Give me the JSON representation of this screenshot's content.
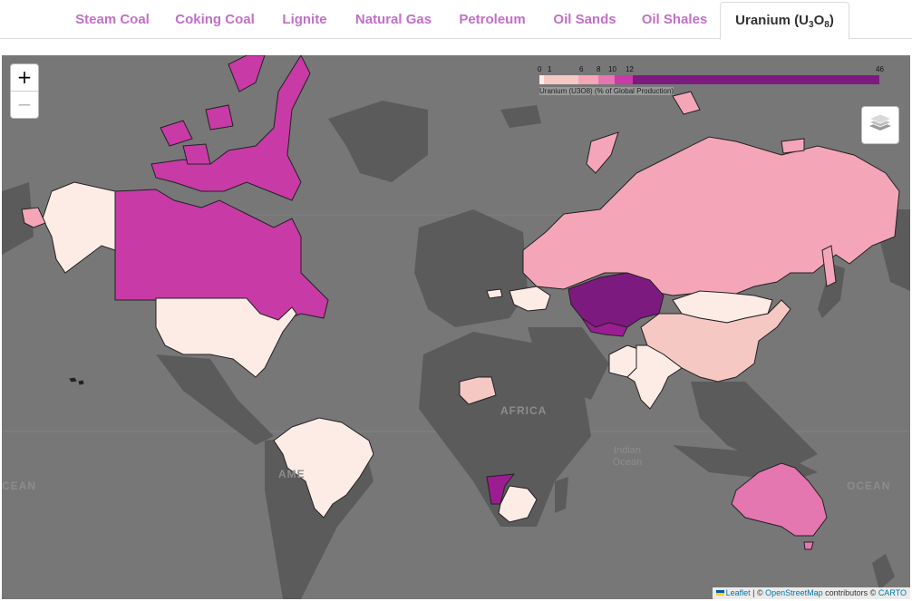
{
  "tabs": [
    {
      "label": "Steam Coal"
    },
    {
      "label": "Coking Coal"
    },
    {
      "label": "Lignite"
    },
    {
      "label": "Natural Gas"
    },
    {
      "label": "Petroleum"
    },
    {
      "label": "Oil Sands"
    },
    {
      "label": "Oil Shales"
    },
    {
      "label_main": "Uranium (U",
      "sub1": "3",
      "mid": "O",
      "sub2": "8",
      "end": ")"
    }
  ],
  "active_tab": "Uranium (U3O8)",
  "zoom": {
    "in_label": "+",
    "out_label": "−"
  },
  "legend": {
    "title": "Uranium (U3O8) (% of Global Production)",
    "ticks": [
      "0",
      "1",
      "6",
      "8",
      "10",
      "12",
      "46"
    ],
    "colors": [
      "#fdebe6",
      "#f5c8c4",
      "#f4a6b8",
      "#e476b0",
      "#c83aa6",
      "#9c1d92",
      "#7d1a80"
    ]
  },
  "map_labels": {
    "africa": "AFRICA",
    "indian_ocean_1": "Indian",
    "indian_ocean_2": "Ocean",
    "america_fragment": "AME",
    "ocean_right": "OCEAN",
    "ocean_left": "CEAN"
  },
  "attribution": {
    "leaflet": "Leaflet",
    "sep1": " | © ",
    "osm": "OpenStreetMap",
    "contrib": " contributors © ",
    "carto": "CARTO"
  },
  "country_shares": {
    "Kazakhstan": 46,
    "Namibia": 11,
    "Canada": 13,
    "Australia": 9,
    "Uzbekistan": 6,
    "Russia": 6,
    "Niger": 5,
    "China": 3,
    "Mongolia": 1,
    "Ukraine": 1,
    "India": 1,
    "South Africa": 1,
    "United States": 1,
    "Brazil": 0,
    "Pakistan": 0,
    "Czech Republic": 0
  },
  "colors": {
    "ocean": "#777777",
    "land_base": "#5b5b5b",
    "tab_text": "#c26fc8"
  }
}
